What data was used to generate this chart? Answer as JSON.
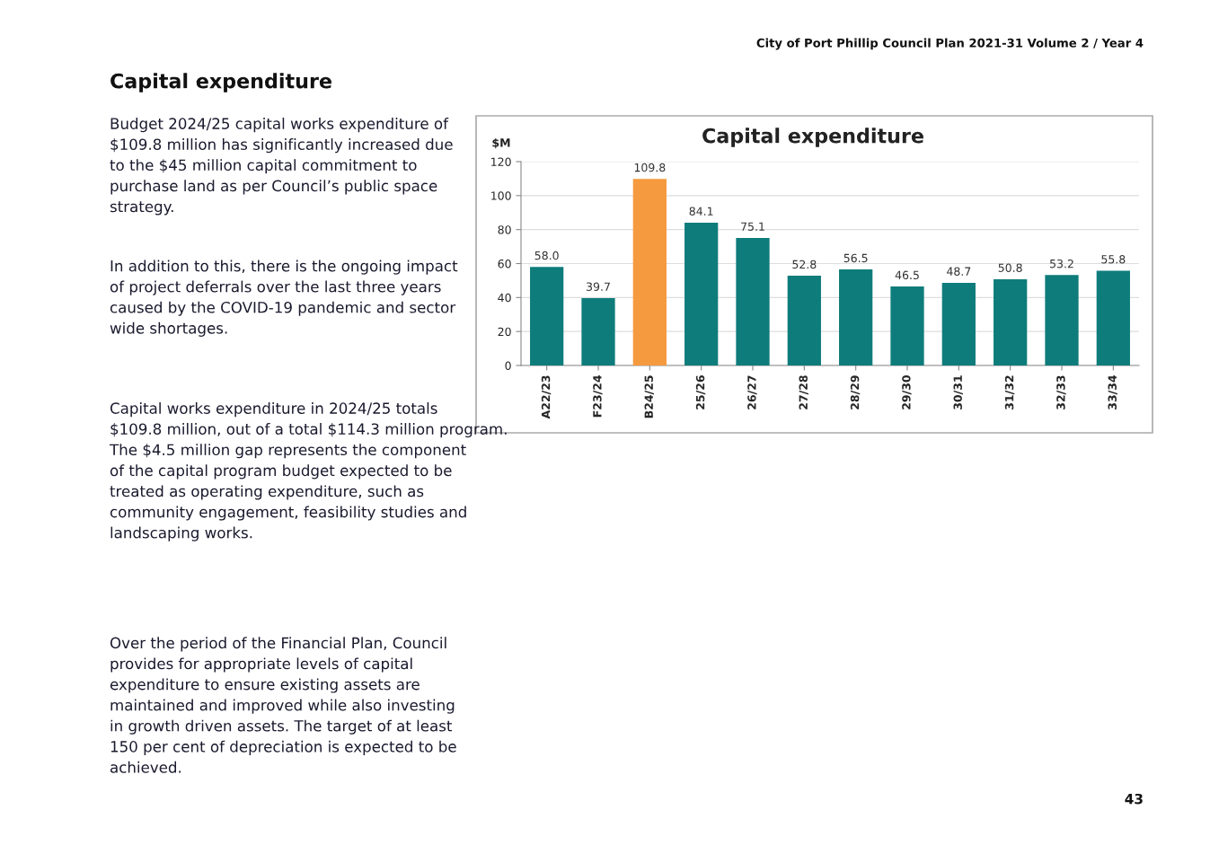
{
  "chart_data": {
    "type": "bar",
    "title": "Capital expenditure",
    "ylabel": "$M",
    "categories": [
      "A22/23",
      "F23/24",
      "B24/25",
      "25/26",
      "26/27",
      "27/28",
      "28/29",
      "29/30",
      "30/31",
      "31/32",
      "32/33",
      "33/34"
    ],
    "values": [
      58.0,
      39.7,
      109.8,
      84.1,
      75.1,
      52.8,
      56.5,
      46.5,
      48.7,
      50.8,
      53.2,
      55.8
    ],
    "value_labels": [
      "58.0",
      "39.7",
      "109.8",
      "84.1",
      "75.1",
      "52.8",
      "56.5",
      "46.5",
      "48.7",
      "50.8",
      "53.2",
      "55.8"
    ],
    "colors": [
      "#0e7c7b",
      "#0e7c7b",
      "#f59a3e",
      "#0e7c7b",
      "#0e7c7b",
      "#0e7c7b",
      "#0e7c7b",
      "#0e7c7b",
      "#0e7c7b",
      "#0e7c7b",
      "#0e7c7b",
      "#0e7c7b"
    ],
    "ylim": [
      0,
      120
    ],
    "yticks": [
      0,
      20,
      40,
      60,
      80,
      100,
      120
    ],
    "grid": "y",
    "annotations": [
      "City of Port Phillip Council Plan 2021-31 Volume 2 / Year 4",
      "Capital expenditure",
      "Budget 2024/25 capital works expenditure of $109.8 million has significantly increased due to the $45 million capital commitment to purchase land as per Council’s public space strategy.",
      "In addition to this, there is the ongoing impact of project deferrals over the last three years caused by the COVID-19 pandemic and sector wide shortages.",
      "Capital works expenditure in 2024/25 totals $109.8 million, out of a total $114.3 million program. The $4.5 million gap represents the component of the capital program budget expected to be treated as operating expenditure, such as community engagement, feasibility studies and landscaping works.",
      "Over the period of the Financial Plan, Council provides for appropriate levels of capital expenditure to ensure existing assets are maintained and improved while also investing in growth driven assets. The target of at least 150 per cent of depreciation is expected to be achieved.",
      "43"
    ]
  }
}
